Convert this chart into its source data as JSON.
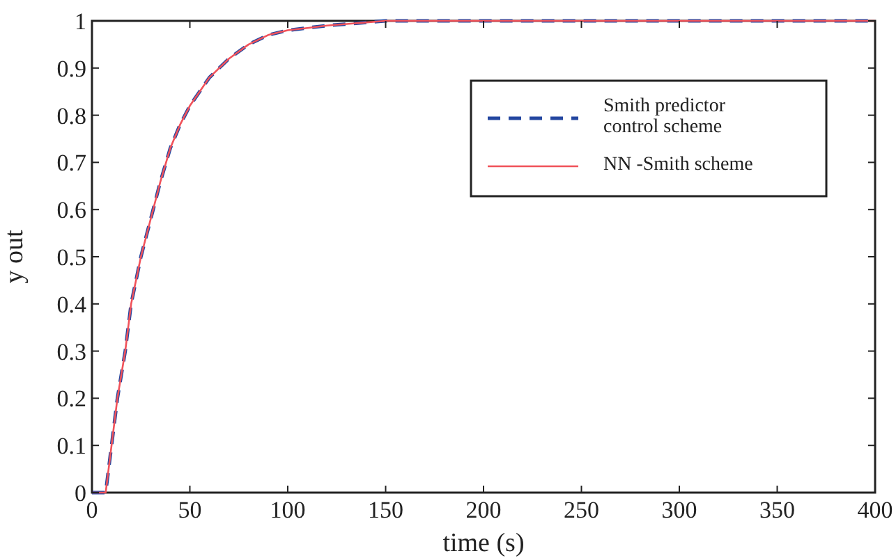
{
  "chart_data": {
    "type": "line",
    "xlabel": "time (s)",
    "ylabel": "y out",
    "xlim": [
      0,
      400
    ],
    "xticks": [
      0,
      50,
      100,
      150,
      200,
      250,
      300,
      350,
      400
    ],
    "ylim": [
      0,
      1
    ],
    "yticks": [
      0,
      0.1,
      0.2,
      0.3,
      0.4,
      0.5,
      0.6,
      0.7,
      0.8,
      0.9,
      1
    ],
    "x": [
      0,
      7,
      10,
      13,
      17,
      20,
      25,
      30,
      35,
      40,
      45,
      50,
      55,
      60,
      70,
      80,
      90,
      100,
      110,
      120,
      135,
      150,
      200,
      250,
      300,
      350,
      400
    ],
    "series": [
      {
        "name": "Smith predictor control scheme",
        "color": "#2447a0",
        "line_style": "dashed",
        "values": [
          0,
          0,
          0.1,
          0.2,
          0.3,
          0.4,
          0.5,
          0.58,
          0.66,
          0.73,
          0.78,
          0.82,
          0.85,
          0.88,
          0.92,
          0.95,
          0.97,
          0.98,
          0.985,
          0.99,
          0.995,
          1,
          1,
          1,
          1,
          1,
          1
        ]
      },
      {
        "name": "NN -Smith scheme",
        "color": "#f0525a",
        "line_style": "solid",
        "values": [
          0,
          0,
          0.1,
          0.2,
          0.3,
          0.4,
          0.5,
          0.58,
          0.66,
          0.73,
          0.78,
          0.82,
          0.85,
          0.88,
          0.92,
          0.95,
          0.97,
          0.98,
          0.985,
          0.99,
          0.995,
          1,
          1,
          1,
          1,
          1,
          1
        ]
      }
    ],
    "legend": "top right",
    "grid": false
  }
}
